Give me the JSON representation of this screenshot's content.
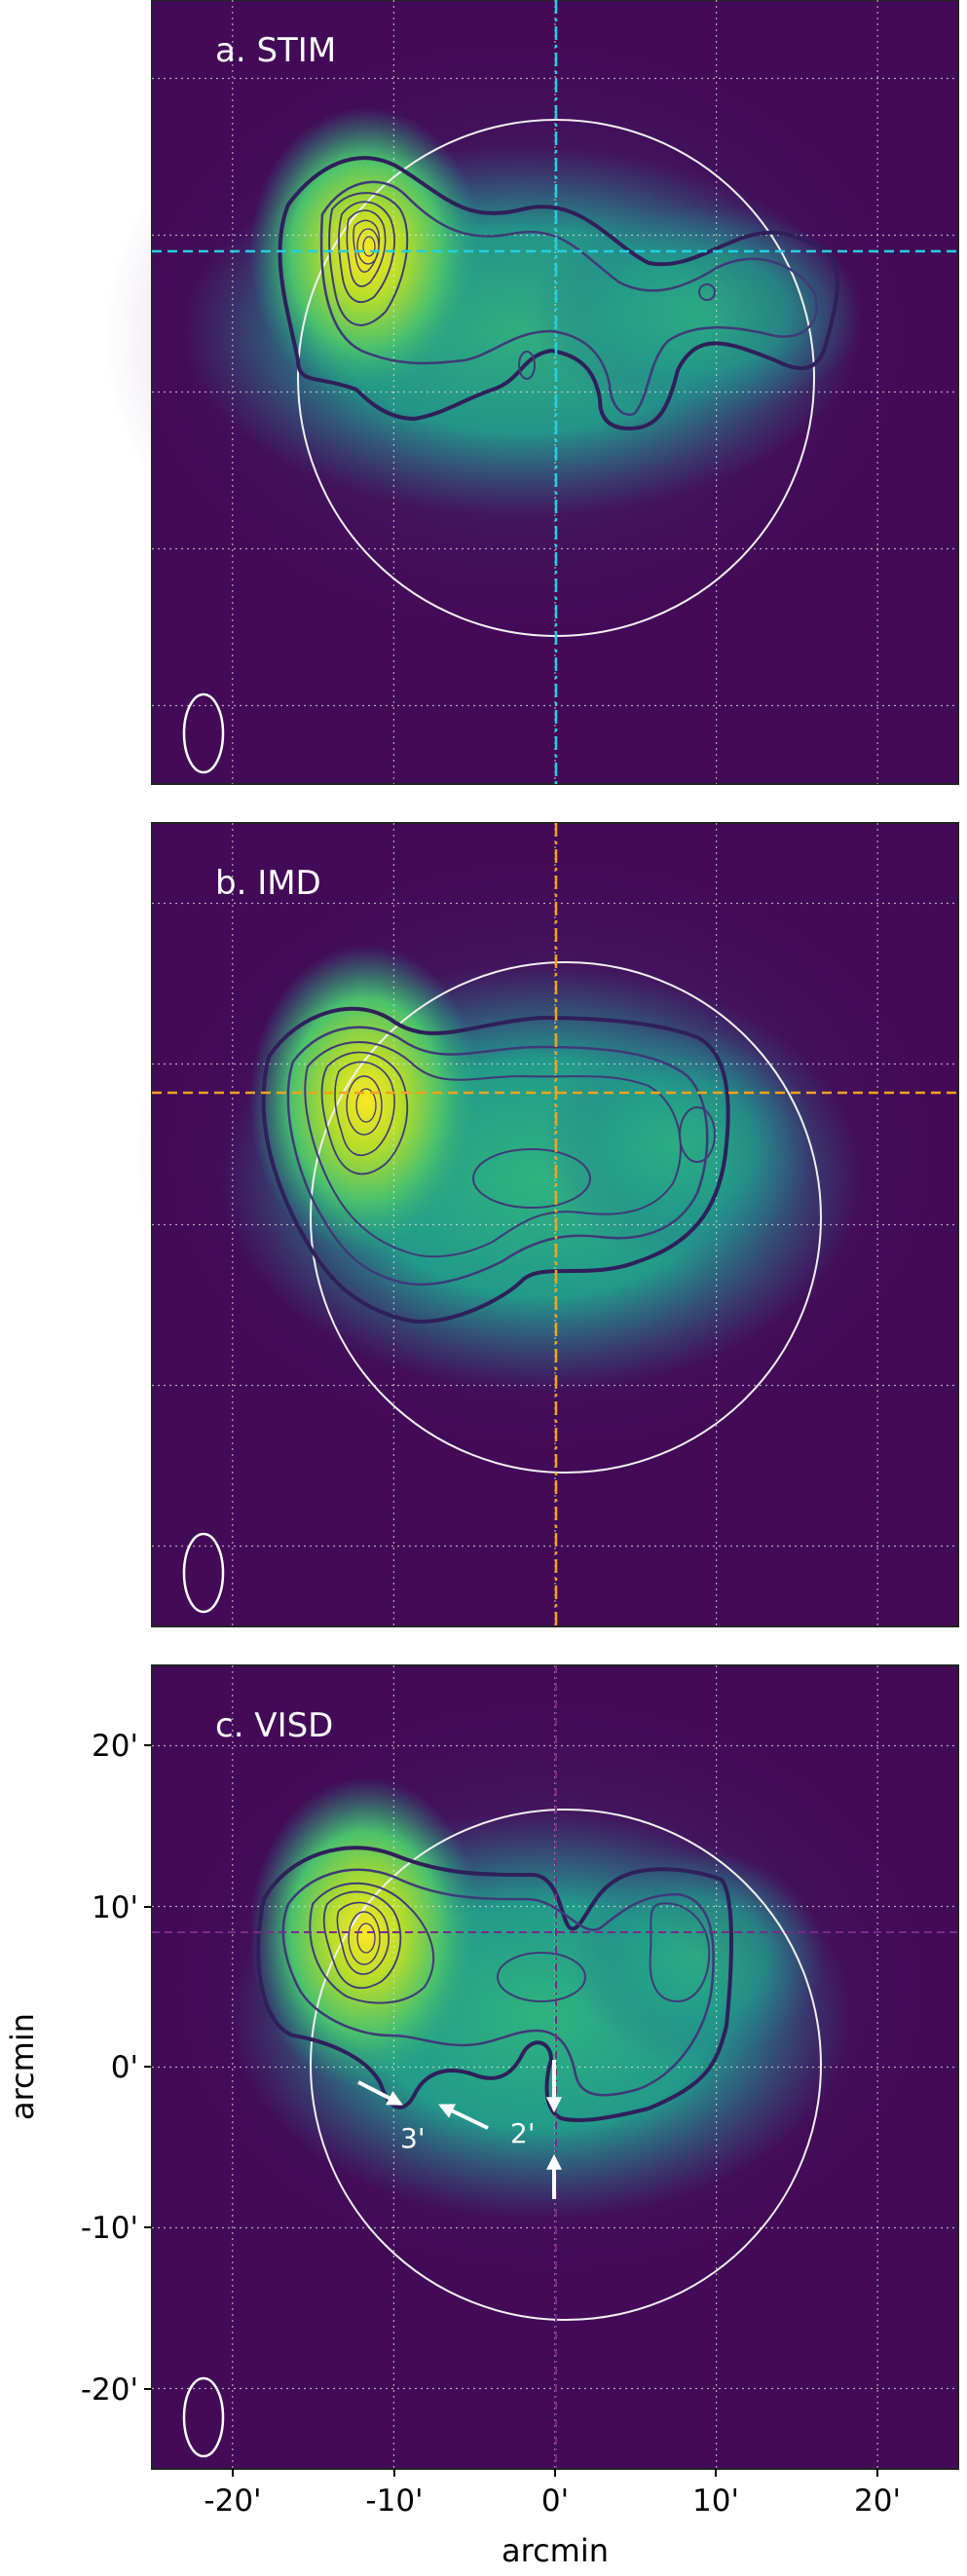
{
  "colors": {
    "background": "#430a58",
    "panel_a_crosshair": "#22d0e0",
    "panel_b_crosshair": "#f2a21a",
    "panel_c_crosshair": "#7a2a8a",
    "contour": "#2f1f5a",
    "contour_light": "#3f3a78",
    "grid": "#e8e8e8",
    "annotation": "#ffffff"
  },
  "panels": [
    {
      "label": "a. STIM",
      "crosshair": {
        "x": 0,
        "y": 8
      }
    },
    {
      "label": "b. IMD",
      "crosshair": {
        "x": 0,
        "y": 8
      }
    },
    {
      "label": "c. VISD",
      "crosshair": {
        "x": 0,
        "y": 8
      }
    }
  ],
  "axes": {
    "xlabel": "arcmin",
    "ylabel": "arcmin",
    "xlim": [
      -25,
      25
    ],
    "ylim": [
      -25,
      25
    ],
    "x_ticks": [
      "-20'",
      "-10'",
      "0'",
      "10'",
      "20'"
    ],
    "y_ticks": [
      "20'",
      "10'",
      "0'",
      "-10'",
      "-20'"
    ],
    "grid": true
  },
  "annotations": {
    "arrow_label_left": "3'",
    "arrow_label_right": "2'"
  }
}
